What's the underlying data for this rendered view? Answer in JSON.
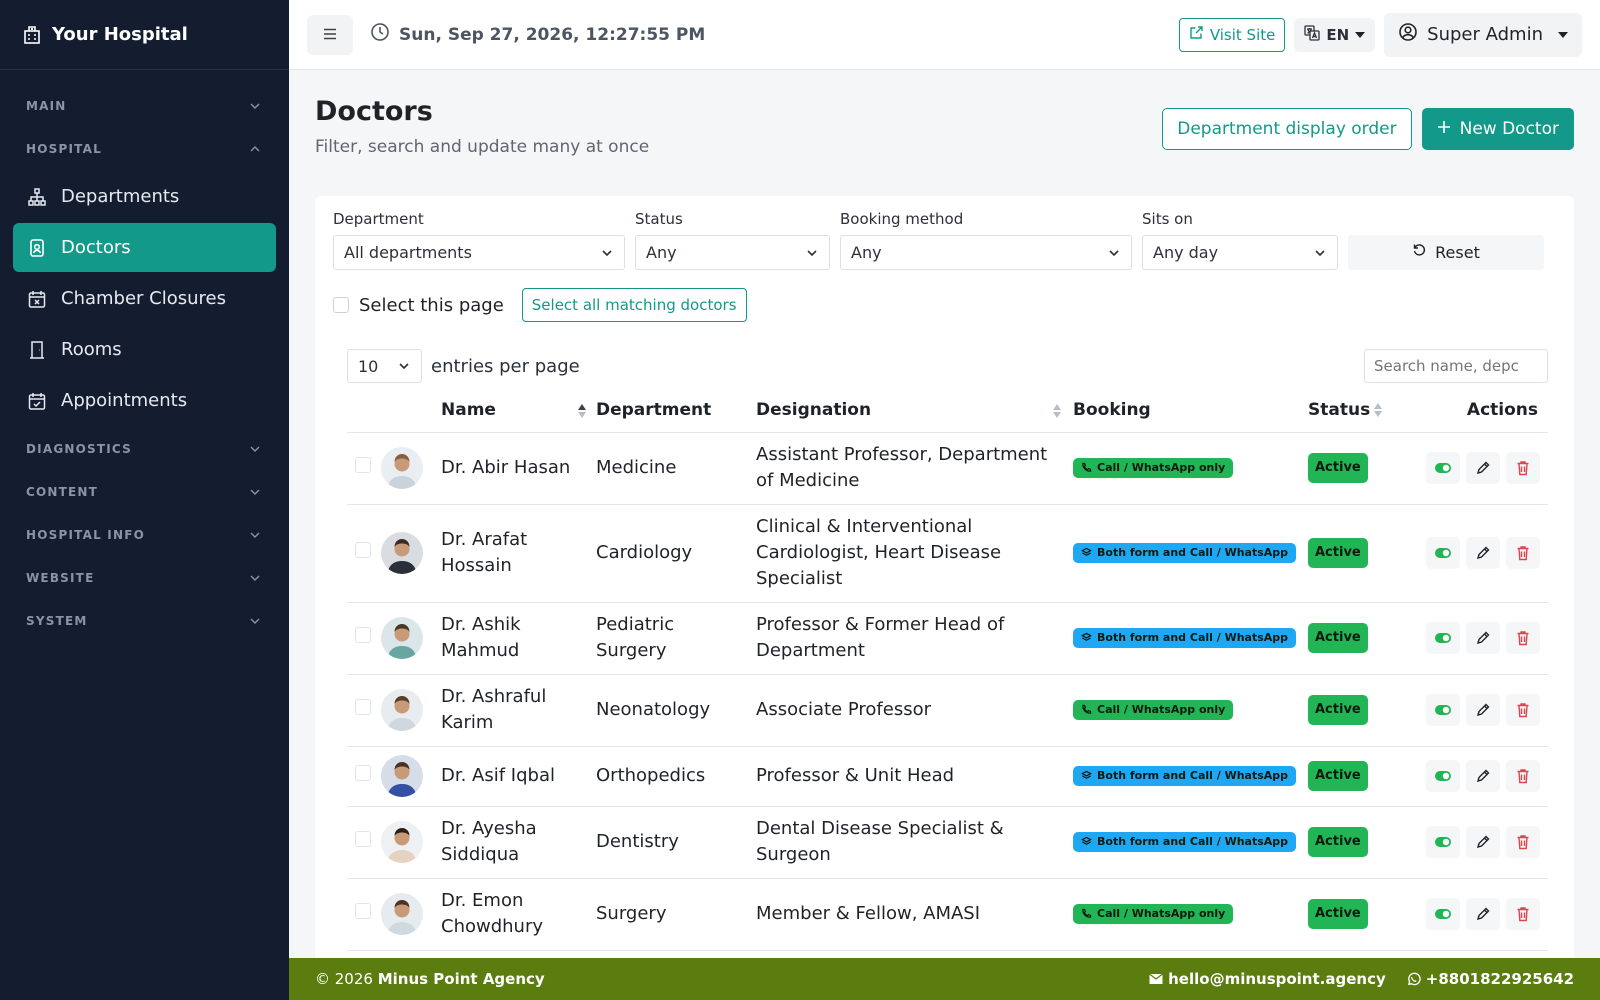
{
  "brand": {
    "name": "Your Hospital"
  },
  "sidebar": {
    "main_label": "MAIN",
    "hospital_label": "HOSPITAL",
    "items": [
      {
        "label": "Departments",
        "icon": "sitemap-icon"
      },
      {
        "label": "Doctors",
        "icon": "id-badge-icon",
        "active": true
      },
      {
        "label": "Chamber Closures",
        "icon": "calendar-x-icon"
      },
      {
        "label": "Rooms",
        "icon": "door-icon"
      },
      {
        "label": "Appointments",
        "icon": "calendar-check-icon"
      }
    ],
    "sections_after": [
      "DIAGNOSTICS",
      "CONTENT",
      "HOSPITAL INFO",
      "WEBSITE",
      "SYSTEM"
    ]
  },
  "topbar": {
    "datetime": "Sun, Sep 27, 2026, 12:27:55 PM",
    "visit_site": "Visit Site",
    "lang": "EN",
    "user": "Super Admin"
  },
  "page": {
    "title": "Doctors",
    "subtitle": "Filter, search and update many at once",
    "dept_order_btn": "Department display order",
    "new_doctor_btn": "New Doctor"
  },
  "filters": {
    "department": {
      "label": "Department",
      "value": "All departments"
    },
    "status": {
      "label": "Status",
      "value": "Any"
    },
    "booking": {
      "label": "Booking method",
      "value": "Any"
    },
    "sits_on": {
      "label": "Sits on",
      "value": "Any day"
    },
    "reset": "Reset"
  },
  "bulk": {
    "select_page": "Select this page",
    "select_all": "Select all matching doctors"
  },
  "list": {
    "per_page": "10",
    "per_page_label": "entries per page",
    "search_placeholder": "Search name, depc"
  },
  "table": {
    "headers": {
      "name": "Name",
      "department": "Department",
      "designation": "Designation",
      "booking": "Booking",
      "status": "Status",
      "actions": "Actions"
    },
    "rows": [
      {
        "name": "Dr. Abir Hasan",
        "department": "Medicine",
        "designation": "Assistant Professor, Department of Medicine",
        "booking": "Call / WhatsApp only",
        "booking_type": "call",
        "status": "Active"
      },
      {
        "name": "Dr. Arafat Hossain",
        "department": "Cardiology",
        "designation": "Clinical & Interventional Cardiologist, Heart Disease Specialist",
        "booking": "Both form and Call / WhatsApp",
        "booking_type": "both",
        "status": "Active"
      },
      {
        "name": "Dr. Ashik Mahmud",
        "department": "Pediatric Surgery",
        "designation": "Professor & Former Head of Department",
        "booking": "Both form and Call / WhatsApp",
        "booking_type": "both",
        "status": "Active"
      },
      {
        "name": "Dr. Ashraful Karim",
        "department": "Neonatology",
        "designation": "Associate Professor",
        "booking": "Call / WhatsApp only",
        "booking_type": "call",
        "status": "Active"
      },
      {
        "name": "Dr. Asif Iqbal",
        "department": "Orthopedics",
        "designation": "Professor & Unit Head",
        "booking": "Both form and Call / WhatsApp",
        "booking_type": "both",
        "status": "Active"
      },
      {
        "name": "Dr. Ayesha Siddiqua",
        "department": "Dentistry",
        "designation": "Dental Disease Specialist & Surgeon",
        "booking": "Both form and Call / WhatsApp",
        "booking_type": "both",
        "status": "Active"
      },
      {
        "name": "Dr. Emon Chowdhury",
        "department": "Surgery",
        "designation": "Member & Fellow, AMASI",
        "booking": "Call / WhatsApp only",
        "booking_type": "call",
        "status": "Active"
      }
    ]
  },
  "footer": {
    "copyright": "© 2026",
    "agency": "Minus Point Agency",
    "email": "hello@minuspoint.agency",
    "phone": "+8801822925642"
  },
  "colors": {
    "accent": "#12998a",
    "sidebar": "#141d30",
    "footer": "#5b7c0f",
    "active_badge": "#22b556",
    "both_badge": "#1ea7f2",
    "danger": "#e0454f"
  }
}
